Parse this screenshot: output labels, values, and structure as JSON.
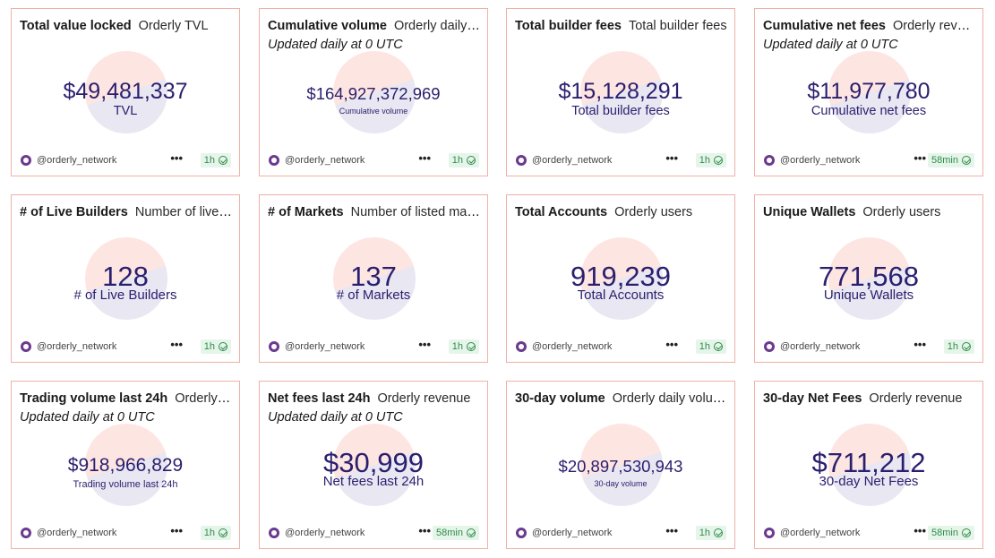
{
  "cards": [
    {
      "title": "Total value locked",
      "query": "Orderly TVL",
      "subtitle": "",
      "value": "$49,481,337",
      "label": "TVL",
      "size": "big",
      "user": "@orderly_network",
      "refresh": "1h"
    },
    {
      "title": "Cumulative volume",
      "query": "Orderly daily v...",
      "subtitle": "Updated daily at 0 UTC",
      "value": "$164,927,372,969",
      "label": "Cumulative volume",
      "size": "med",
      "user": "@orderly_network",
      "refresh": "1h"
    },
    {
      "title": "Total builder fees",
      "query": "Total builder fees",
      "subtitle": "",
      "value": "$15,128,291",
      "label": "Total builder fees",
      "size": "big",
      "user": "@orderly_network",
      "refresh": "1h"
    },
    {
      "title": "Cumulative net fees",
      "query": "Orderly reven...",
      "subtitle": "Updated daily at 0 UTC",
      "value": "$11,977,780",
      "label": "Cumulative net fees",
      "size": "big",
      "user": "@orderly_network",
      "refresh": "58min"
    },
    {
      "title": "# of Live Builders",
      "query": "Number of live b...",
      "subtitle": "",
      "value": "128",
      "label": "# of Live Builders",
      "size": "xl",
      "user": "@orderly_network",
      "refresh": "1h"
    },
    {
      "title": "# of Markets",
      "query": "Number of listed mar...",
      "subtitle": "",
      "value": "137",
      "label": "# of Markets",
      "size": "xl",
      "user": "@orderly_network",
      "refresh": "1h"
    },
    {
      "title": "Total Accounts",
      "query": "Orderly users",
      "subtitle": "",
      "value": "919,239",
      "label": "Total Accounts",
      "size": "xl",
      "user": "@orderly_network",
      "refresh": "1h"
    },
    {
      "title": "Unique Wallets",
      "query": "Orderly users",
      "subtitle": "",
      "value": "771,568",
      "label": "Unique Wallets",
      "size": "xl",
      "user": "@orderly_network",
      "refresh": "1h"
    },
    {
      "title": "Trading volume last 24h",
      "query": "Orderly d...",
      "subtitle": "Updated daily at 0 UTC",
      "value": "$918,966,829",
      "label": "Trading volume last 24h",
      "size": "med2",
      "user": "@orderly_network",
      "refresh": "1h"
    },
    {
      "title": "Net fees last 24h",
      "query": "Orderly revenue",
      "subtitle": "Updated daily at 0 UTC",
      "value": "$30,999",
      "label": "Net fees last 24h",
      "size": "xl",
      "user": "@orderly_network",
      "refresh": "58min"
    },
    {
      "title": "30-day volume",
      "query": "Orderly daily volume",
      "subtitle": "",
      "value": "$20,897,530,943",
      "label": "30-day volume",
      "size": "med",
      "user": "@orderly_network",
      "refresh": "1h"
    },
    {
      "title": "30-day Net Fees",
      "query": "Orderly revenue",
      "subtitle": "",
      "value": "$711,212",
      "label": "30-day Net Fees",
      "size": "xl",
      "user": "@orderly_network",
      "refresh": "58min"
    }
  ],
  "more_label": "•••"
}
